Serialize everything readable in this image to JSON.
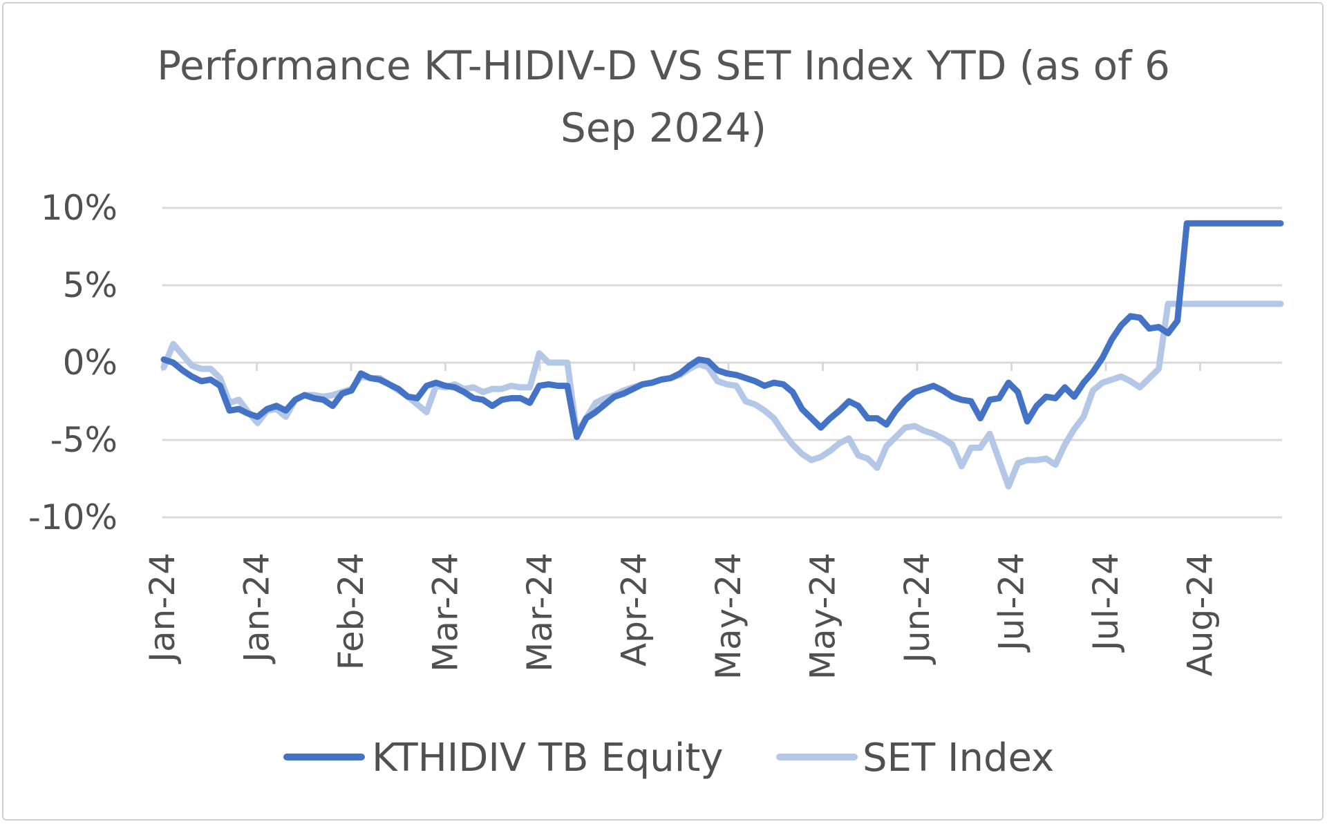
{
  "chart_data": {
    "type": "line",
    "title": [
      "Performance KT-HIDIV-D VS SET Index YTD (as of 6",
      "Sep 2024)"
    ],
    "xlabel": "",
    "ylabel": "",
    "ylim": [
      -10,
      10
    ],
    "yticks": [
      10,
      5,
      0,
      -5,
      -10
    ],
    "ytick_labels": [
      "10%",
      "5%",
      "0%",
      "-5%",
      "-10%"
    ],
    "x_tick_labels": [
      "Jan-24",
      "Jan-24",
      "Feb-24",
      "Mar-24",
      "Mar-24",
      "Apr-24",
      "May-24",
      "May-24",
      "Jun-24",
      "Jul-24",
      "Jul-24",
      "Aug-24"
    ],
    "grid": "horizontal",
    "legend_position": "bottom",
    "x_points": 120,
    "series": [
      {
        "name": "KTHIDIV TB Equity",
        "color": "#4472c4",
        "values": [
          0.2,
          0.0,
          -0.5,
          -0.9,
          -1.2,
          -1.1,
          -1.5,
          -3.1,
          -3.0,
          -3.3,
          -3.5,
          -3.0,
          -2.8,
          -3.1,
          -2.4,
          -2.1,
          -2.3,
          -2.4,
          -2.8,
          -2.0,
          -1.8,
          -0.7,
          -1.0,
          -1.1,
          -1.4,
          -1.7,
          -2.2,
          -2.3,
          -1.5,
          -1.3,
          -1.5,
          -1.6,
          -1.9,
          -2.3,
          -2.4,
          -2.8,
          -2.4,
          -2.3,
          -2.3,
          -2.6,
          -1.5,
          -1.4,
          -1.5,
          -1.5,
          -4.8,
          -3.6,
          -3.2,
          -2.7,
          -2.2,
          -2.0,
          -1.7,
          -1.4,
          -1.3,
          -1.1,
          -1.0,
          -0.7,
          -0.2,
          0.2,
          0.1,
          -0.5,
          -0.7,
          -0.8,
          -1.0,
          -1.2,
          -1.5,
          -1.3,
          -1.4,
          -1.9,
          -3.0,
          -3.6,
          -4.2,
          -3.6,
          -3.1,
          -2.5,
          -2.8,
          -3.6,
          -3.6,
          -4.0,
          -3.1,
          -2.4,
          -1.9,
          -1.7,
          -1.5,
          -1.8,
          -2.2,
          -2.4,
          -2.5,
          -3.6,
          -2.4,
          -2.3,
          -1.3,
          -1.9,
          -3.8,
          -2.8,
          -2.2,
          -2.3,
          -1.6,
          -2.2,
          -1.3,
          -0.6,
          0.3,
          1.5,
          2.4,
          3.0,
          2.9,
          2.2,
          2.3,
          1.9,
          2.7,
          9.0,
          9.0,
          9.0,
          9.0,
          9.0,
          9.0,
          9.0,
          9.0,
          9.0,
          9.0,
          9.0
        ]
      },
      {
        "name": "SET Index",
        "color": "#b4c7e7",
        "values": [
          -0.3,
          1.2,
          0.5,
          -0.2,
          -0.4,
          -0.4,
          -1.0,
          -2.6,
          -2.4,
          -3.2,
          -3.9,
          -3.1,
          -3.0,
          -3.5,
          -2.4,
          -2.1,
          -2.1,
          -2.2,
          -2.1,
          -1.9,
          -1.7,
          -0.9,
          -1.0,
          -1.0,
          -1.4,
          -1.8,
          -2.2,
          -2.7,
          -3.2,
          -1.5,
          -1.6,
          -1.4,
          -1.7,
          -1.6,
          -1.9,
          -1.7,
          -1.7,
          -1.5,
          -1.6,
          -1.6,
          0.6,
          0.0,
          0.0,
          0.0,
          -4.6,
          -3.6,
          -2.6,
          -2.3,
          -2.1,
          -1.8,
          -1.6,
          -1.4,
          -1.3,
          -1.1,
          -1.0,
          -0.8,
          -0.4,
          -0.1,
          -0.3,
          -1.2,
          -1.4,
          -1.5,
          -2.5,
          -2.7,
          -3.1,
          -3.6,
          -4.5,
          -5.3,
          -5.9,
          -6.3,
          -6.1,
          -5.7,
          -5.2,
          -4.9,
          -6.0,
          -6.2,
          -6.8,
          -5.4,
          -4.8,
          -4.2,
          -4.1,
          -4.4,
          -4.6,
          -4.9,
          -5.3,
          -6.7,
          -5.5,
          -5.5,
          -4.6,
          -6.3,
          -8.0,
          -6.5,
          -6.3,
          -6.3,
          -6.2,
          -6.6,
          -5.3,
          -4.3,
          -3.5,
          -1.8,
          -1.3,
          -1.1,
          -0.9,
          -1.2,
          -1.6,
          -1.0,
          -0.4,
          3.8,
          3.8,
          3.8,
          3.8,
          3.8,
          3.8,
          3.8,
          3.8,
          3.8,
          3.8,
          3.8,
          3.8,
          3.8
        ]
      }
    ]
  }
}
